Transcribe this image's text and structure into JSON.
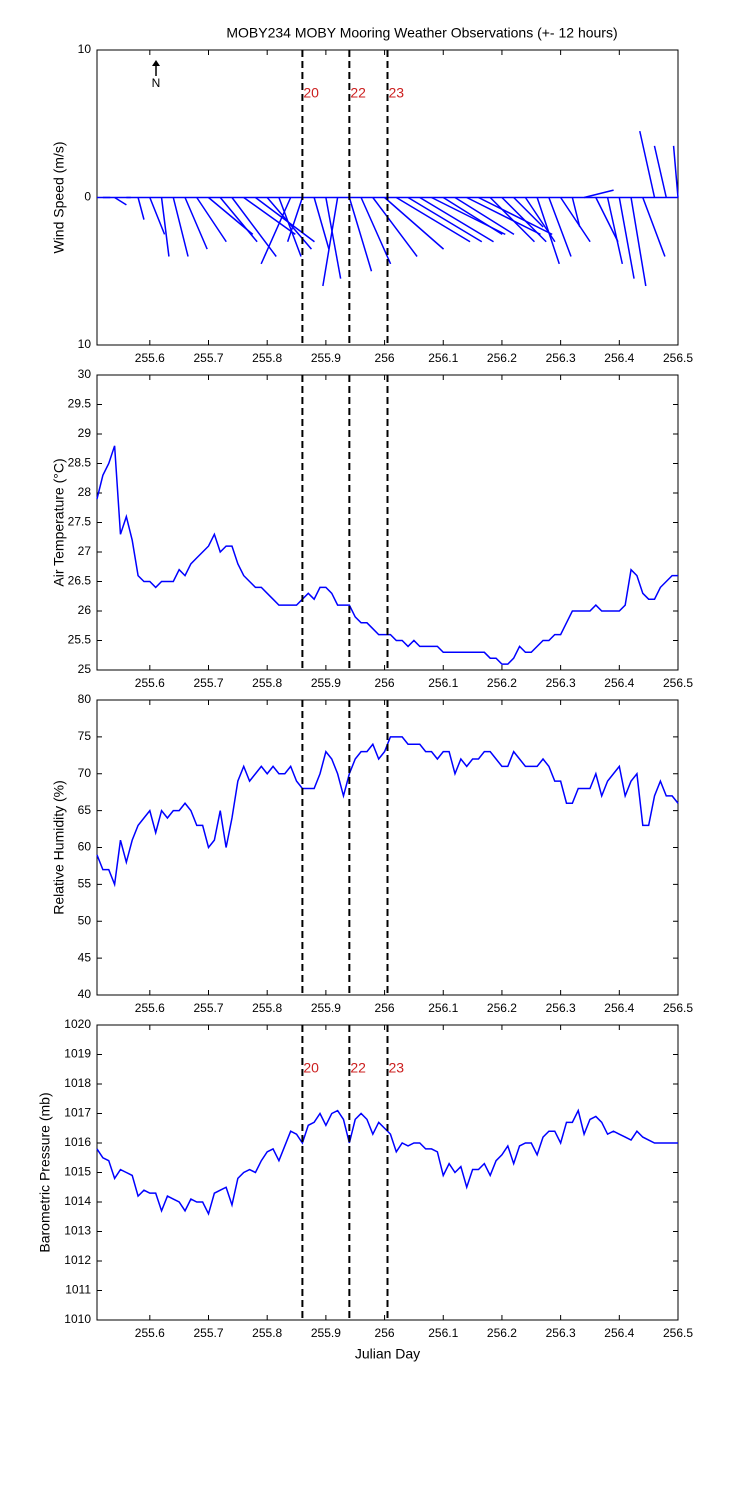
{
  "chart_data": [
    {
      "type": "stick",
      "title": "MOBY234 MOBY Mooring Weather Observations (+- 12 hours)",
      "ylabel": "Wind Speed (m/s)",
      "color": "#0000ff",
      "xlim": [
        255.51,
        256.5
      ],
      "xticks": [
        255.6,
        255.7,
        255.8,
        255.9,
        256,
        256.1,
        256.2,
        256.3,
        256.4,
        256.5
      ],
      "ylim": [
        -10,
        10
      ],
      "yticks": [
        {
          "value": -10,
          "label": "10"
        },
        0,
        10
      ],
      "north_label": "N",
      "events": [
        {
          "x": 255.86,
          "label": "20"
        },
        {
          "x": 255.94,
          "label": "22"
        },
        {
          "x": 256.005,
          "label": "23"
        }
      ],
      "x": [
        255.52,
        255.54,
        255.56,
        255.58,
        255.6,
        255.62,
        255.64,
        255.66,
        255.68,
        255.7,
        255.72,
        255.74,
        255.76,
        255.78,
        255.8,
        255.82,
        255.84,
        255.86,
        255.88,
        255.9,
        255.92,
        255.94,
        255.96,
        255.98,
        256,
        256.02,
        256.04,
        256.06,
        256.08,
        256.1,
        256.12,
        256.14,
        256.16,
        256.18,
        256.2,
        256.22,
        256.24,
        256.26,
        256.28,
        256.3,
        256.32,
        256.34,
        256.36,
        256.38,
        256.4,
        256.42,
        256.44,
        256.46,
        256.48,
        256.5
      ],
      "u": [
        0.5,
        0.8,
        0.3,
        0.4,
        1,
        0.5,
        1,
        1.5,
        2,
        3,
        2.5,
        3,
        3.5,
        4,
        3,
        1.5,
        -2,
        -1,
        1,
        1,
        -1,
        1.5,
        2,
        3,
        4,
        5,
        5,
        5,
        5,
        4,
        4,
        5,
        5,
        3,
        3,
        2,
        2,
        1.5,
        1.5,
        2,
        0.5,
        2,
        1.5,
        1,
        1,
        1,
        1.5,
        -1,
        -0.8,
        -0.3
      ],
      "v": [
        0,
        -0.5,
        0,
        -1.5,
        -2.5,
        -4,
        -4,
        -3.5,
        -3,
        -2.5,
        -3,
        -4,
        -2.5,
        -3,
        -3.5,
        -4,
        -4.5,
        -3,
        -3.5,
        -5.5,
        -6,
        -5,
        -4.5,
        -4,
        -3.5,
        -3,
        -3,
        -3,
        -2.5,
        -2.5,
        -2.5,
        -2.5,
        -2.5,
        -3,
        -3,
        -2,
        -3,
        -4.5,
        -4,
        -3,
        -2,
        0.5,
        -3,
        -4.5,
        -5.5,
        -6,
        -4,
        4.5,
        3.5,
        3.5
      ]
    },
    {
      "type": "line",
      "ylabel": "Air Temperature (°C)",
      "color": "#0000ff",
      "xlim": [
        255.51,
        256.5
      ],
      "xticks": [
        255.6,
        255.7,
        255.8,
        255.9,
        256,
        256.1,
        256.2,
        256.3,
        256.4,
        256.5
      ],
      "ylim": [
        25,
        30
      ],
      "yticks": [
        25,
        25.5,
        26,
        26.5,
        27,
        27.5,
        28,
        28.5,
        29,
        29.5,
        30
      ],
      "events": [
        {
          "x": 255.86
        },
        {
          "x": 255.94
        },
        {
          "x": 256.005
        }
      ],
      "x": [
        255.51,
        255.52,
        255.53,
        255.54,
        255.55,
        255.56,
        255.57,
        255.58,
        255.59,
        255.6,
        255.61,
        255.62,
        255.63,
        255.64,
        255.65,
        255.66,
        255.67,
        255.68,
        255.69,
        255.7,
        255.71,
        255.72,
        255.73,
        255.74,
        255.75,
        255.76,
        255.77,
        255.78,
        255.79,
        255.8,
        255.81,
        255.82,
        255.83,
        255.84,
        255.85,
        255.86,
        255.87,
        255.88,
        255.89,
        255.9,
        255.91,
        255.92,
        255.93,
        255.94,
        255.95,
        255.96,
        255.97,
        255.98,
        255.99,
        256,
        256.01,
        256.02,
        256.03,
        256.04,
        256.05,
        256.06,
        256.07,
        256.08,
        256.09,
        256.1,
        256.11,
        256.12,
        256.13,
        256.14,
        256.15,
        256.16,
        256.17,
        256.18,
        256.19,
        256.2,
        256.21,
        256.22,
        256.23,
        256.24,
        256.25,
        256.26,
        256.27,
        256.28,
        256.29,
        256.3,
        256.31,
        256.32,
        256.33,
        256.34,
        256.35,
        256.36,
        256.37,
        256.38,
        256.39,
        256.4,
        256.41,
        256.42,
        256.43,
        256.44,
        256.45,
        256.46,
        256.47,
        256.48,
        256.49,
        256.5
      ],
      "values": [
        27.9,
        28.3,
        28.5,
        28.8,
        27.3,
        27.6,
        27.2,
        26.6,
        26.5,
        26.5,
        26.4,
        26.5,
        26.5,
        26.5,
        26.7,
        26.6,
        26.8,
        26.9,
        27.0,
        27.1,
        27.3,
        27.0,
        27.1,
        27.1,
        26.8,
        26.6,
        26.5,
        26.4,
        26.4,
        26.3,
        26.2,
        26.1,
        26.1,
        26.1,
        26.1,
        26.2,
        26.3,
        26.2,
        26.4,
        26.4,
        26.3,
        26.1,
        26.1,
        26.1,
        25.9,
        25.8,
        25.8,
        25.7,
        25.6,
        25.6,
        25.6,
        25.5,
        25.5,
        25.4,
        25.5,
        25.4,
        25.4,
        25.4,
        25.4,
        25.3,
        25.3,
        25.3,
        25.3,
        25.3,
        25.3,
        25.3,
        25.3,
        25.2,
        25.2,
        25.1,
        25.1,
        25.2,
        25.4,
        25.3,
        25.3,
        25.4,
        25.5,
        25.5,
        25.6,
        25.6,
        25.8,
        26.0,
        26.0,
        26.0,
        26.0,
        26.1,
        26.0,
        26.0,
        26.0,
        26.0,
        26.1,
        26.7,
        26.6,
        26.3,
        26.2,
        26.2,
        26.4,
        26.5,
        26.6,
        26.6
      ]
    },
    {
      "type": "line",
      "ylabel": "Relative Humidity (%)",
      "color": "#0000ff",
      "xlim": [
        255.51,
        256.5
      ],
      "xticks": [
        255.6,
        255.7,
        255.8,
        255.9,
        256,
        256.1,
        256.2,
        256.3,
        256.4,
        256.5
      ],
      "ylim": [
        40,
        80
      ],
      "yticks": [
        40,
        45,
        50,
        55,
        60,
        65,
        70,
        75,
        80
      ],
      "events": [
        {
          "x": 255.86
        },
        {
          "x": 255.94
        },
        {
          "x": 256.005
        }
      ],
      "x": [
        255.51,
        255.52,
        255.53,
        255.54,
        255.55,
        255.56,
        255.57,
        255.58,
        255.59,
        255.6,
        255.61,
        255.62,
        255.63,
        255.64,
        255.65,
        255.66,
        255.67,
        255.68,
        255.69,
        255.7,
        255.71,
        255.72,
        255.73,
        255.74,
        255.75,
        255.76,
        255.77,
        255.78,
        255.79,
        255.8,
        255.81,
        255.82,
        255.83,
        255.84,
        255.85,
        255.86,
        255.87,
        255.88,
        255.89,
        255.9,
        255.91,
        255.92,
        255.93,
        255.94,
        255.95,
        255.96,
        255.97,
        255.98,
        255.99,
        256,
        256.01,
        256.02,
        256.03,
        256.04,
        256.05,
        256.06,
        256.07,
        256.08,
        256.09,
        256.1,
        256.11,
        256.12,
        256.13,
        256.14,
        256.15,
        256.16,
        256.17,
        256.18,
        256.19,
        256.2,
        256.21,
        256.22,
        256.23,
        256.24,
        256.25,
        256.26,
        256.27,
        256.28,
        256.29,
        256.3,
        256.31,
        256.32,
        256.33,
        256.34,
        256.35,
        256.36,
        256.37,
        256.38,
        256.39,
        256.4,
        256.41,
        256.42,
        256.43,
        256.44,
        256.45,
        256.46,
        256.47,
        256.48,
        256.49,
        256.5
      ],
      "values": [
        59,
        57,
        57,
        55,
        61,
        58,
        61,
        63,
        64,
        65,
        62,
        65,
        64,
        65,
        65,
        66,
        65,
        63,
        63,
        60,
        61,
        65,
        60,
        64,
        69,
        71,
        69,
        70,
        71,
        70,
        71,
        70,
        70,
        71,
        69,
        68,
        68,
        68,
        70,
        73,
        72,
        70,
        67,
        70,
        72,
        73,
        73,
        74,
        72,
        73,
        75,
        75,
        75,
        74,
        74,
        74,
        73,
        73,
        72,
        73,
        73,
        70,
        72,
        71,
        72,
        72,
        73,
        73,
        72,
        71,
        71,
        73,
        72,
        71,
        71,
        71,
        72,
        71,
        69,
        69,
        66,
        66,
        68,
        68,
        68,
        70,
        67,
        69,
        70,
        71,
        67,
        69,
        70,
        63,
        63,
        67,
        69,
        67,
        67,
        66
      ]
    },
    {
      "type": "line",
      "ylabel": "Barometric Pressure (mb)",
      "xlabel": "Julian Day",
      "color": "#0000ff",
      "xlim": [
        255.51,
        256.5
      ],
      "xticks": [
        255.6,
        255.7,
        255.8,
        255.9,
        256,
        256.1,
        256.2,
        256.3,
        256.4,
        256.5
      ],
      "ylim": [
        1010,
        1020
      ],
      "yticks": [
        1010,
        1011,
        1012,
        1013,
        1014,
        1015,
        1016,
        1017,
        1018,
        1019,
        1020
      ],
      "events": [
        {
          "x": 255.86,
          "label": "20"
        },
        {
          "x": 255.94,
          "label": "22"
        },
        {
          "x": 256.005,
          "label": "23"
        }
      ],
      "x": [
        255.51,
        255.52,
        255.53,
        255.54,
        255.55,
        255.56,
        255.57,
        255.58,
        255.59,
        255.6,
        255.61,
        255.62,
        255.63,
        255.64,
        255.65,
        255.66,
        255.67,
        255.68,
        255.69,
        255.7,
        255.71,
        255.72,
        255.73,
        255.74,
        255.75,
        255.76,
        255.77,
        255.78,
        255.79,
        255.8,
        255.81,
        255.82,
        255.83,
        255.84,
        255.85,
        255.86,
        255.87,
        255.88,
        255.89,
        255.9,
        255.91,
        255.92,
        255.93,
        255.94,
        255.95,
        255.96,
        255.97,
        255.98,
        255.99,
        256,
        256.01,
        256.02,
        256.03,
        256.04,
        256.05,
        256.06,
        256.07,
        256.08,
        256.09,
        256.1,
        256.11,
        256.12,
        256.13,
        256.14,
        256.15,
        256.16,
        256.17,
        256.18,
        256.19,
        256.2,
        256.21,
        256.22,
        256.23,
        256.24,
        256.25,
        256.26,
        256.27,
        256.28,
        256.29,
        256.3,
        256.31,
        256.32,
        256.33,
        256.34,
        256.35,
        256.36,
        256.37,
        256.38,
        256.39,
        256.4,
        256.41,
        256.42,
        256.43,
        256.44,
        256.45,
        256.46,
        256.47,
        256.48,
        256.49,
        256.5
      ],
      "values": [
        1015.8,
        1015.5,
        1015.4,
        1014.8,
        1015.1,
        1015.0,
        1014.9,
        1014.2,
        1014.4,
        1014.3,
        1014.3,
        1013.7,
        1014.2,
        1014.1,
        1014.0,
        1013.7,
        1014.1,
        1014.0,
        1014.0,
        1013.6,
        1014.3,
        1014.4,
        1014.5,
        1013.9,
        1014.8,
        1015.0,
        1015.1,
        1015.0,
        1015.4,
        1015.7,
        1015.8,
        1015.4,
        1015.9,
        1016.4,
        1016.3,
        1016.0,
        1016.6,
        1016.7,
        1017.0,
        1016.6,
        1017.0,
        1017.1,
        1016.8,
        1016.0,
        1016.8,
        1017.0,
        1016.8,
        1016.3,
        1016.7,
        1016.5,
        1016.3,
        1015.7,
        1016.0,
        1015.9,
        1016.0,
        1016.0,
        1015.8,
        1015.8,
        1015.7,
        1014.9,
        1015.3,
        1015.0,
        1015.2,
        1014.5,
        1015.1,
        1015.1,
        1015.3,
        1014.9,
        1015.4,
        1015.6,
        1015.9,
        1015.3,
        1015.9,
        1016.0,
        1016.0,
        1015.6,
        1016.2,
        1016.4,
        1016.4,
        1016.0,
        1016.7,
        1016.7,
        1017.1,
        1016.3,
        1016.8,
        1016.9,
        1016.7,
        1016.3,
        1016.4,
        1016.3,
        1016.2,
        1016.1,
        1016.4,
        1016.2,
        1016.1,
        1016.0,
        1016.0,
        1016.0,
        1016.0,
        1016.0
      ]
    }
  ]
}
